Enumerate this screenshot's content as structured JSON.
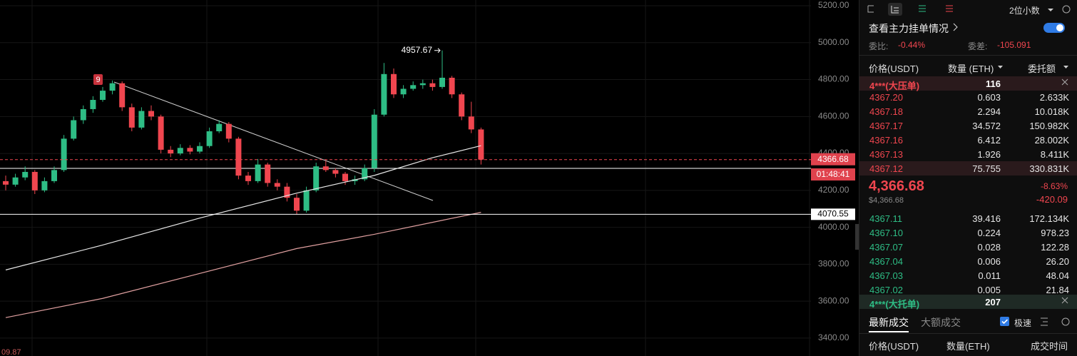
{
  "chart_data": {
    "type": "candlestick",
    "ylim": [
      3303,
      5231
    ],
    "yticks": [
      {
        "value": 5200,
        "label": "5200.00"
      },
      {
        "value": 5000,
        "label": "5000.00"
      },
      {
        "value": 4800,
        "label": "4800.00"
      },
      {
        "value": 4600,
        "label": "4600.00"
      },
      {
        "value": 4400,
        "label": "4400.00"
      },
      {
        "value": 4200,
        "label": "4200.00"
      },
      {
        "value": 4000,
        "label": "4000.00"
      },
      {
        "value": 3800,
        "label": "3800.00"
      },
      {
        "value": 3600,
        "label": "3600.00"
      },
      {
        "value": 3400,
        "label": "3400.00"
      }
    ],
    "grid": true,
    "up_color": "#2ebd85",
    "down_color": "#f0464f",
    "ohlc": [
      [
        4250,
        4280,
        4200,
        4231
      ],
      [
        4231,
        4290,
        4220,
        4270
      ],
      [
        4270,
        4330,
        4255,
        4300
      ],
      [
        4300,
        4310,
        4180,
        4200
      ],
      [
        4200,
        4270,
        4190,
        4250
      ],
      [
        4250,
        4330,
        4240,
        4310
      ],
      [
        4310,
        4500,
        4300,
        4480
      ],
      [
        4480,
        4600,
        4470,
        4580
      ],
      [
        4580,
        4660,
        4560,
        4640
      ],
      [
        4640,
        4710,
        4620,
        4690
      ],
      [
        4690,
        4760,
        4680,
        4740
      ],
      [
        4740,
        4795,
        4720,
        4780
      ],
      [
        4780,
        4790,
        4630,
        4650
      ],
      [
        4650,
        4670,
        4520,
        4540
      ],
      [
        4540,
        4650,
        4530,
        4630
      ],
      [
        4630,
        4660,
        4580,
        4600
      ],
      [
        4600,
        4610,
        4400,
        4420
      ],
      [
        4420,
        4440,
        4380,
        4400
      ],
      [
        4400,
        4450,
        4390,
        4430
      ],
      [
        4430,
        4445,
        4395,
        4410
      ],
      [
        4410,
        4460,
        4400,
        4440
      ],
      [
        4440,
        4540,
        4430,
        4520
      ],
      [
        4520,
        4580,
        4510,
        4560
      ],
      [
        4560,
        4570,
        4460,
        4480
      ],
      [
        4480,
        4490,
        4260,
        4280
      ],
      [
        4280,
        4300,
        4230,
        4250
      ],
      [
        4250,
        4370,
        4240,
        4340
      ],
      [
        4340,
        4350,
        4220,
        4240
      ],
      [
        4240,
        4260,
        4200,
        4220
      ],
      [
        4220,
        4240,
        4140,
        4160
      ],
      [
        4160,
        4180,
        4070,
        4090
      ],
      [
        4090,
        4220,
        4080,
        4200
      ],
      [
        4200,
        4350,
        4190,
        4330
      ],
      [
        4330,
        4360,
        4300,
        4310
      ],
      [
        4310,
        4320,
        4270,
        4290
      ],
      [
        4290,
        4300,
        4230,
        4250
      ],
      [
        4250,
        4280,
        4230,
        4260
      ],
      [
        4260,
        4340,
        4250,
        4320
      ],
      [
        4320,
        4640,
        4300,
        4610
      ],
      [
        4610,
        4890,
        4600,
        4830
      ],
      [
        4830,
        4860,
        4700,
        4720
      ],
      [
        4720,
        4770,
        4700,
        4750
      ],
      [
        4750,
        4790,
        4740,
        4770
      ],
      [
        4770,
        4800,
        4750,
        4780
      ],
      [
        4780,
        4800,
        4740,
        4760
      ],
      [
        4760,
        4957.67,
        4750,
        4810
      ],
      [
        4810,
        4820,
        4700,
        4720
      ],
      [
        4720,
        4730,
        4580,
        4600
      ],
      [
        4600,
        4680,
        4510,
        4530
      ],
      [
        4530,
        4540,
        4340,
        4366.68
      ]
    ],
    "ma": [
      {
        "color": "#e8e8e8",
        "x": [
          0,
          10,
          20,
          30,
          38,
          44,
          49
        ],
        "values": [
          3769,
          3904,
          4050,
          4185,
          4281,
          4377,
          4442
        ]
      },
      {
        "color": "#e0a0a0",
        "x": [
          0,
          10,
          20,
          30,
          38,
          44,
          49
        ],
        "values": [
          3511,
          3615,
          3750,
          3885,
          3962,
          4027,
          4081
        ]
      }
    ],
    "levels": [
      4070.55
    ],
    "countdown": "01:48:41",
    "badge": "9",
    "cut_label": "09.87"
  },
  "order_book": {
    "decimals": "2位小数",
    "main_orders": "查看主力挂单情况",
    "ratio_label": "委比:",
    "ratio": "-0.44%",
    "diff_label": "委差:",
    "diff": "-105.091",
    "headers": [
      "价格(USDT)",
      "数量 (ETH)",
      "委托额"
    ],
    "big_ask": {
      "label": "4***(大压单)",
      "count": "116"
    },
    "asks": [
      [
        "4367.20",
        "0.603",
        "2.633K"
      ],
      [
        "4367.18",
        "2.294",
        "10.018K"
      ],
      [
        "4367.17",
        "34.572",
        "150.982K"
      ],
      [
        "4367.16",
        "6.412",
        "28.002K"
      ],
      [
        "4367.13",
        "1.926",
        "8.411K"
      ],
      [
        "4367.12",
        "75.755",
        "330.831K"
      ]
    ],
    "last_price": "4,366.68",
    "last_price_usd": "$4,366.68",
    "change_pct": "-8.63%",
    "change": "-420.09",
    "bids": [
      [
        "4367.11",
        "39.416",
        "172.134K"
      ],
      [
        "4367.10",
        "0.224",
        "978.23"
      ],
      [
        "4367.07",
        "0.028",
        "122.28"
      ],
      [
        "4367.04",
        "0.006",
        "26.20"
      ],
      [
        "4367.03",
        "0.011",
        "48.04"
      ],
      [
        "4367.02",
        "0.005",
        "21.84"
      ]
    ],
    "big_bid": {
      "label": "4***(大托单)",
      "count": "207"
    },
    "tabs": [
      "最新成交",
      "大额成交"
    ],
    "fast": "极速",
    "trade_headers": [
      "价格(USDT)",
      "数量(ETH)",
      "成交时间"
    ]
  }
}
